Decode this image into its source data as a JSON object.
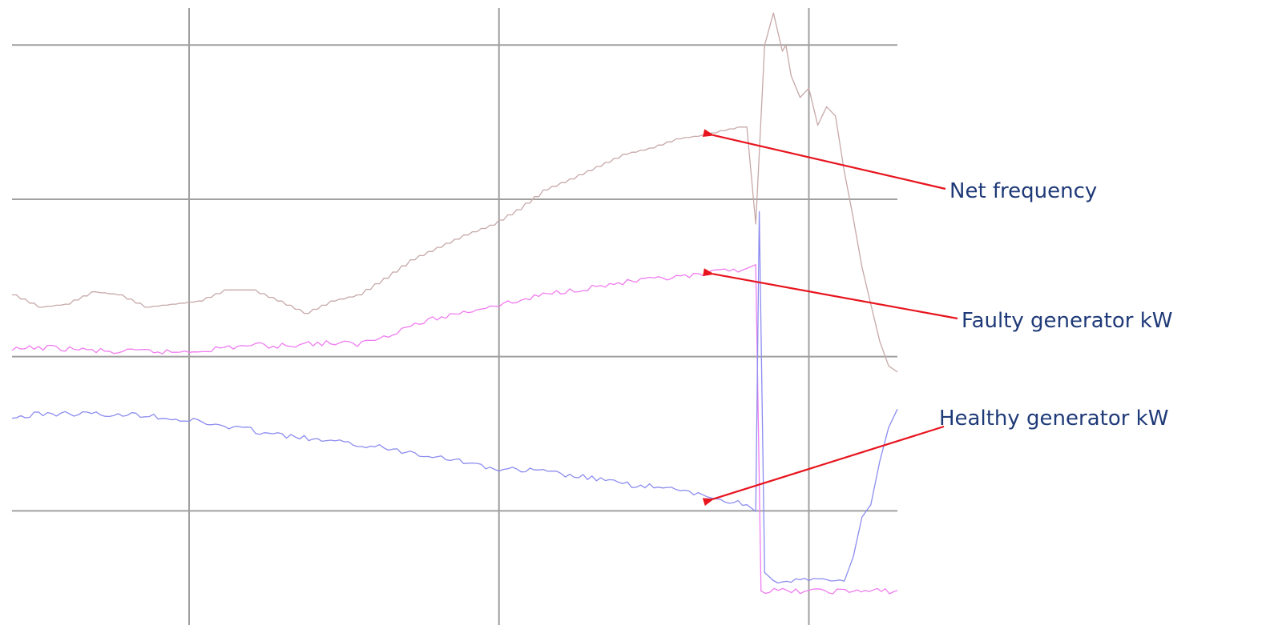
{
  "chart_data": {
    "type": "line",
    "title": "",
    "xlabel": "",
    "ylabel": "",
    "xlim": [
      0,
      100
    ],
    "ylim": [
      0,
      100
    ],
    "grid": true,
    "x_gridlines": [
      20,
      55,
      90
    ],
    "y_gridlines": [
      94,
      69,
      43.5,
      18.5
    ],
    "colors": {
      "grid": "#a0a0a0",
      "arrow": "#e8141e",
      "annotation_text": "#1f3a78"
    },
    "series": [
      {
        "key": "net_frequency",
        "color": "#c7a8a8",
        "x": [
          0,
          3,
          6,
          9,
          12,
          15,
          18,
          21,
          24,
          27,
          30,
          33,
          36,
          39,
          42,
          45,
          48,
          51,
          54,
          57,
          60,
          63,
          66,
          69,
          72,
          75,
          78,
          80,
          82,
          83,
          84,
          85,
          86,
          87,
          87.4,
          88,
          89,
          90,
          91,
          92,
          93,
          94,
          95,
          96,
          97,
          98,
          99,
          100
        ],
        "y": [
          53.5,
          51.5,
          52,
          54,
          53.5,
          51.5,
          52,
          52.5,
          54.3,
          54.3,
          52.5,
          50.5,
          52.5,
          53.5,
          56.2,
          59.2,
          61.2,
          63.2,
          64.8,
          67.3,
          70.5,
          72.3,
          74.3,
          76.3,
          77.3,
          78.8,
          79.4,
          80.1,
          80.7,
          80.7,
          65,
          94,
          99.2,
          93,
          94,
          89,
          85.5,
          87,
          81,
          84,
          82.5,
          73.5,
          66,
          58,
          52,
          46,
          42,
          41
        ]
      },
      {
        "key": "faulty_generator_kw",
        "color": "#f07cf0",
        "x": [
          0,
          3,
          6,
          9,
          12,
          15,
          18,
          21,
          24,
          27,
          30,
          33,
          36,
          39,
          42,
          45,
          48,
          51,
          54,
          57,
          60,
          63,
          66,
          69,
          72,
          75,
          78,
          80,
          83,
          84,
          84.6,
          90,
          95,
          100
        ],
        "y": [
          44.5,
          45,
          44.8,
          44.5,
          44.2,
          44.4,
          44.2,
          44.5,
          44.9,
          45.4,
          45.2,
          45.6,
          45.7,
          45.5,
          46.8,
          48.5,
          49.7,
          50.7,
          51.7,
          52.4,
          53.5,
          54.3,
          54.8,
          55.5,
          55.9,
          56.3,
          56.7,
          57.3,
          57.8,
          58.4,
          5.5,
          5.5,
          5.5,
          5.5
        ]
      },
      {
        "key": "healthy_generator_kw",
        "color": "#8c8cf0",
        "x": [
          0,
          3,
          6,
          9,
          12,
          15,
          18,
          21,
          24,
          27,
          30,
          33,
          36,
          39,
          42,
          45,
          48,
          51,
          54,
          57,
          60,
          63,
          66,
          69,
          72,
          75,
          78,
          80,
          83,
          84,
          84.4,
          85,
          86,
          88,
          90,
          92,
          94,
          95,
          96,
          97,
          98,
          99,
          100
        ],
        "y": [
          33.5,
          34.2,
          34.3,
          34.2,
          34,
          34.1,
          33.5,
          33,
          32.2,
          31.6,
          30.8,
          30.3,
          29.7,
          29.3,
          28.7,
          28,
          27.4,
          26.5,
          25.4,
          25.1,
          24.9,
          24.2,
          23.7,
          22.8,
          22.5,
          21.8,
          21.1,
          20.3,
          19.5,
          18.4,
          67,
          8.5,
          7.2,
          7.2,
          7.2,
          7.2,
          7.2,
          11,
          17.5,
          19.5,
          26.5,
          32,
          35
        ]
      }
    ],
    "annotations": [
      {
        "label": "Net frequency",
        "series": "net_frequency",
        "point": [
          78.8,
          79.4
        ]
      },
      {
        "label": "Faulty generator kW",
        "series": "faulty_generator_kw",
        "point": [
          78.8,
          56.9
        ]
      },
      {
        "label": "Healthy generator kW",
        "series": "healthy_generator_kw",
        "point": [
          78.8,
          20.4
        ]
      }
    ]
  }
}
